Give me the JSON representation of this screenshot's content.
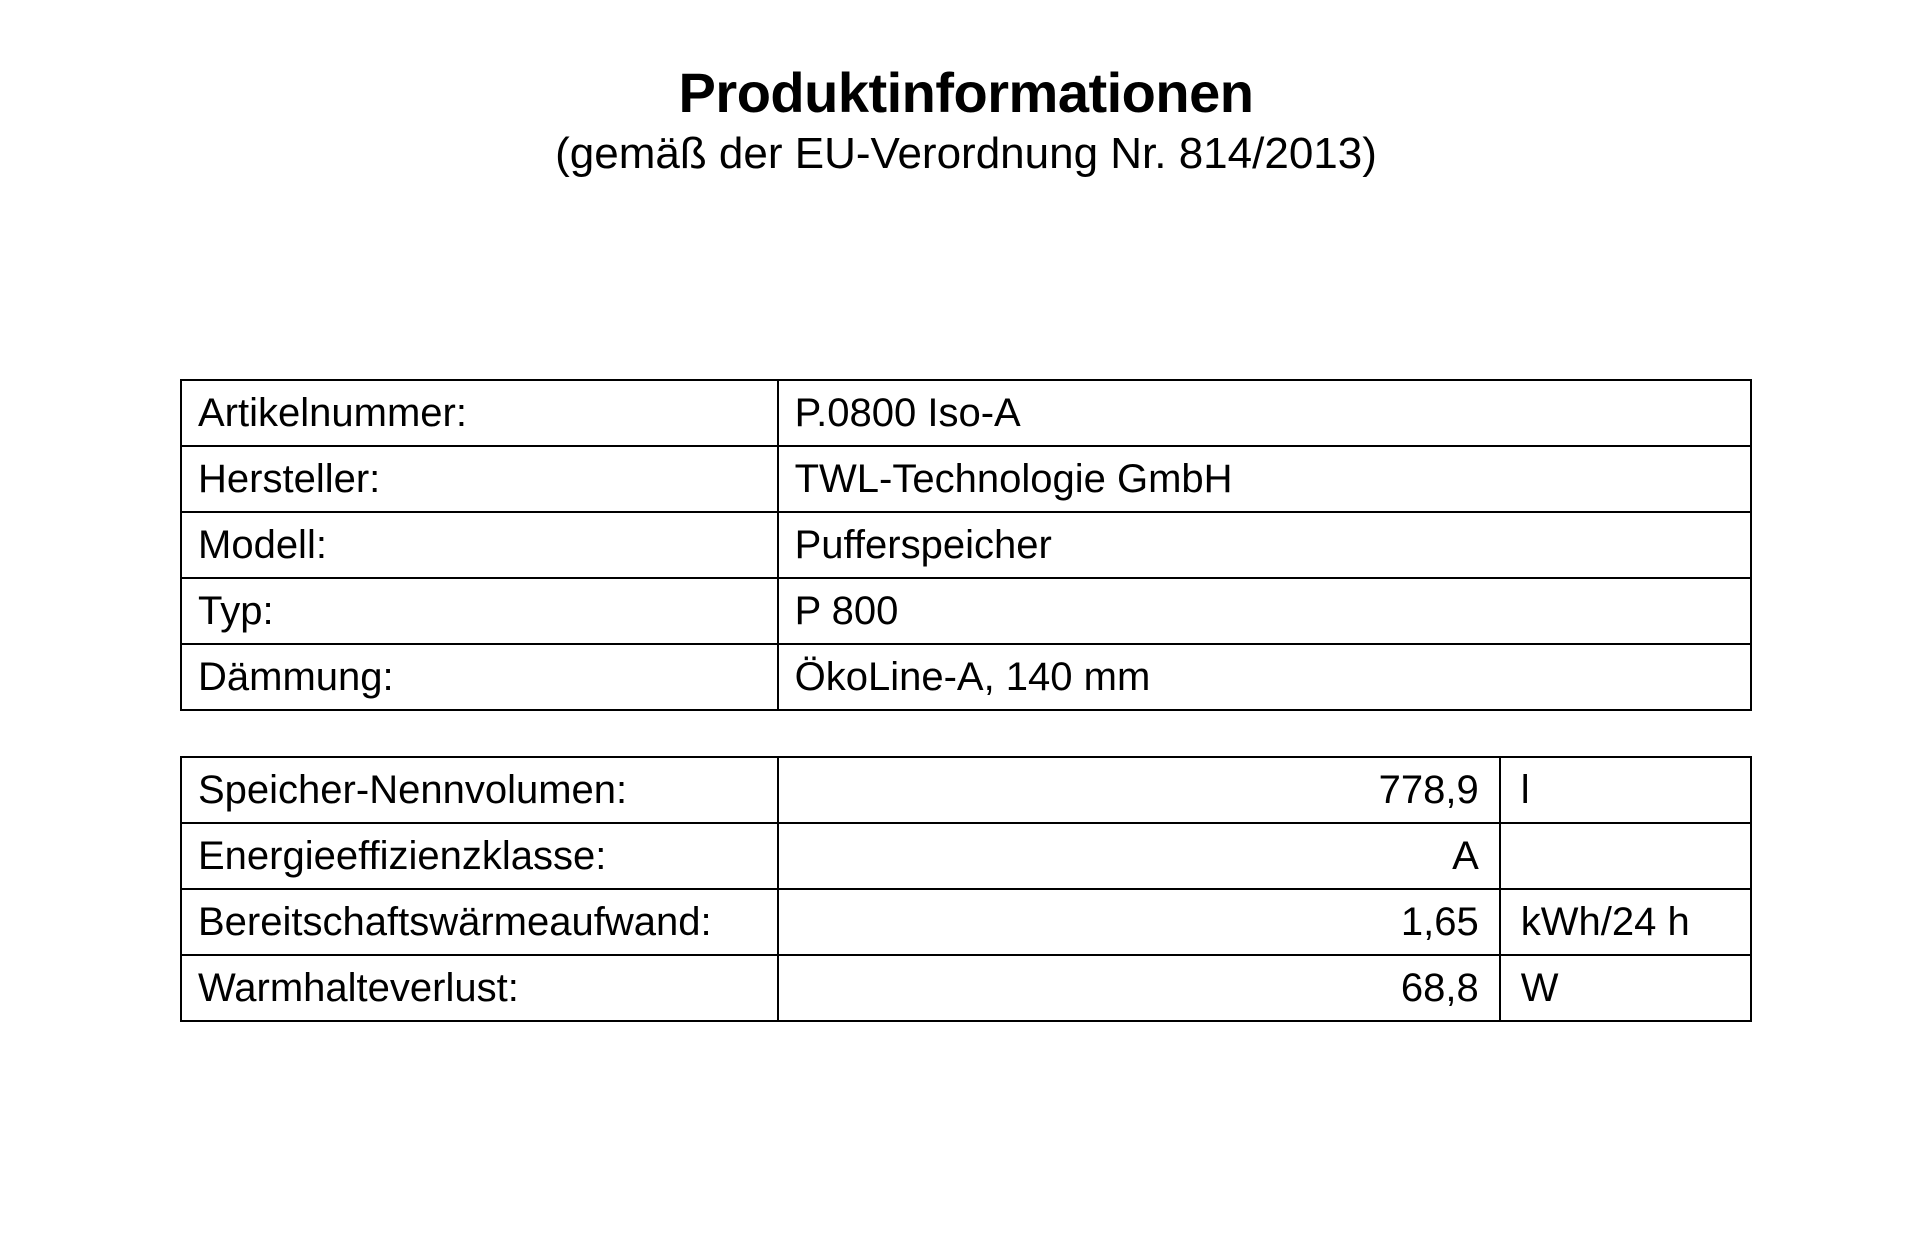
{
  "header": {
    "title": "Produktinformationen",
    "subtitle": "(gemäß der EU-Verordnung Nr. 814/2013)"
  },
  "table1": {
    "rows": [
      {
        "label": "Artikelnummer:",
        "value": "P.0800 Iso-A"
      },
      {
        "label": "Hersteller:",
        "value": "TWL-Technologie GmbH"
      },
      {
        "label": "Modell:",
        "value": "Pufferspeicher"
      },
      {
        "label": "Typ:",
        "value": "P 800"
      },
      {
        "label": "Dämmung:",
        "value": "ÖkoLine-A, 140 mm"
      }
    ]
  },
  "table2": {
    "rows": [
      {
        "label": "Speicher-Nennvolumen:",
        "value": "778,9",
        "unit": "l"
      },
      {
        "label": "Energieeffizienzklasse:",
        "value": "A",
        "unit": ""
      },
      {
        "label": "Bereitschaftswärmeaufwand:",
        "value": "1,65",
        "unit": "kWh/24 h"
      },
      {
        "label": "Warmhalteverlust:",
        "value": "68,8",
        "unit": "W"
      }
    ]
  },
  "style": {
    "background_color": "#ffffff",
    "text_color": "#000000",
    "border_color": "#000000",
    "title_fontsize": 56,
    "subtitle_fontsize": 44,
    "cell_fontsize": 40,
    "font_family": "Arial, Helvetica, sans-serif"
  }
}
